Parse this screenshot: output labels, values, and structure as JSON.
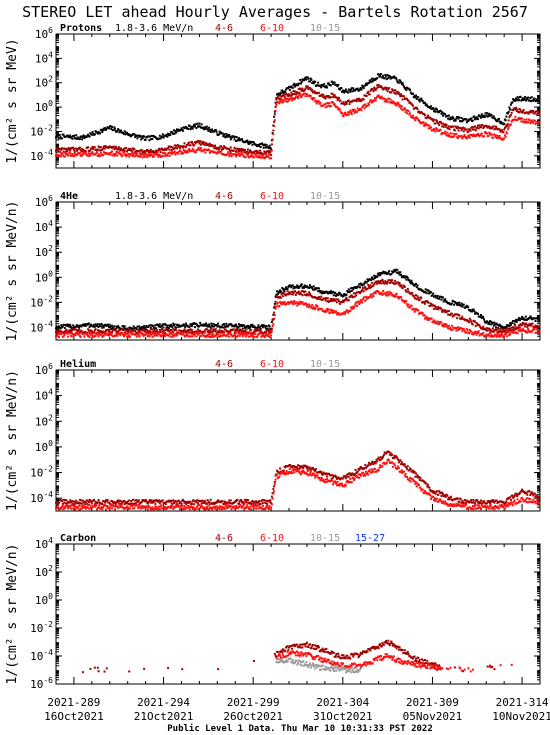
{
  "title": "STEREO LET ahead Hourly Averages - Bartels Rotation 2567",
  "footer": "Public Level 1 Data. Thu Mar 10 10:31:33 PST 2022",
  "x_ticks": [
    {
      "doy": "2021-289",
      "date": "16Oct2021",
      "day": 289
    },
    {
      "doy": "2021-294",
      "date": "21Oct2021",
      "day": 294
    },
    {
      "doy": "2021-299",
      "date": "26Oct2021",
      "day": 299
    },
    {
      "doy": "2021-304",
      "date": "31Oct2021",
      "day": 304
    },
    {
      "doy": "2021-309",
      "date": "05Nov2021",
      "day": 309
    },
    {
      "doy": "2021-314",
      "date": "10Nov2021",
      "day": 314
    }
  ],
  "colors": {
    "black": "#000000",
    "dark_red": "#a00000",
    "red": "#ff1010",
    "gray": "#9a9a9a",
    "blue": "#1030ff"
  },
  "chart_data": [
    {
      "type": "scatter",
      "panel": "Protons",
      "energy_label": "1.8-3.6 MeV/n",
      "ylabel": "1/(cm² s sr MeV)",
      "ylim": [
        1e-05,
        1000000
      ],
      "log_scale": true,
      "y_ticks": [
        -4,
        -2,
        0,
        2,
        4,
        6
      ],
      "xlim": [
        288,
        315
      ],
      "series": [
        {
          "name": "1.8-3.6 MeV/n",
          "color": "black",
          "x": [
            288,
            289.5,
            291,
            292,
            293,
            294,
            295,
            296,
            297,
            298,
            299,
            300,
            300.3,
            301,
            302,
            302.5,
            303,
            303.5,
            304,
            305,
            305.5,
            306,
            307,
            307.5,
            308,
            309,
            310,
            311,
            312,
            313,
            313.5,
            314,
            315
          ],
          "y": [
            -2.4,
            -2.5,
            -1.7,
            -2.2,
            -2.6,
            -2.4,
            -1.8,
            -1.5,
            -2.1,
            -2.6,
            -3.0,
            -3.3,
            1.0,
            1.5,
            2.4,
            1.9,
            1.7,
            2.0,
            1.3,
            1.5,
            2.1,
            2.6,
            2.3,
            1.6,
            0.9,
            -0.1,
            -0.9,
            -1.1,
            -0.6,
            -1.3,
            0.6,
            0.7,
            0.6
          ]
        },
        {
          "name": "4-6",
          "color": "dark_red",
          "x": [
            288,
            289.5,
            291,
            292,
            293,
            294,
            295,
            296,
            297,
            298,
            299,
            300,
            300.3,
            301,
            302,
            302.5,
            303,
            303.5,
            304,
            305,
            305.5,
            306,
            307,
            307.5,
            308,
            309,
            310,
            311,
            312,
            313,
            313.5,
            314,
            315
          ],
          "y": [
            -3.5,
            -3.5,
            -3.3,
            -3.5,
            -3.7,
            -3.5,
            -3.2,
            -2.9,
            -3.3,
            -3.5,
            -3.7,
            -3.8,
            0.7,
            1.0,
            1.6,
            1.1,
            0.8,
            1.0,
            0.3,
            0.6,
            1.2,
            1.7,
            1.2,
            0.6,
            -0.1,
            -1.1,
            -1.7,
            -1.9,
            -1.5,
            -2.0,
            -0.2,
            -0.3,
            -0.5
          ]
        },
        {
          "name": "6-10",
          "color": "red",
          "x": [
            288,
            289.5,
            291,
            292,
            293,
            294,
            295,
            296,
            297,
            298,
            299,
            300,
            300.3,
            301,
            302,
            302.5,
            303,
            303.5,
            304,
            305,
            305.5,
            306,
            307,
            307.5,
            308,
            309,
            310,
            311,
            312,
            313,
            313.5,
            314,
            315
          ],
          "y": [
            -3.9,
            -3.9,
            -3.8,
            -3.9,
            -4.0,
            -3.9,
            -3.7,
            -3.5,
            -3.8,
            -3.9,
            -4.0,
            -4.1,
            0.4,
            0.6,
            1.1,
            0.5,
            0.1,
            0.3,
            -0.6,
            -0.2,
            0.4,
            0.8,
            0.3,
            -0.3,
            -0.9,
            -1.8,
            -2.3,
            -2.5,
            -2.2,
            -2.6,
            -0.9,
            -1.1,
            -1.3
          ]
        }
      ]
    },
    {
      "type": "scatter",
      "panel": "4He",
      "energy_label": "1.8-3.6 MeV/n",
      "ylabel": "1/(cm² s sr MeV/n)",
      "ylim": [
        1e-05,
        1000000
      ],
      "log_scale": true,
      "y_ticks": [
        -4,
        -2,
        0,
        2,
        4,
        6
      ],
      "xlim": [
        288,
        315
      ],
      "series": [
        {
          "name": "1.8-3.6 MeV/n",
          "color": "black",
          "x": [
            288,
            290,
            292,
            294,
            296,
            298,
            300,
            300.3,
            301,
            302,
            303,
            304,
            305,
            306,
            307,
            308,
            309,
            310,
            311,
            312,
            313,
            314,
            315
          ],
          "y": [
            -4.0,
            -3.8,
            -4.1,
            -3.9,
            -3.8,
            -3.9,
            -4.0,
            -1.2,
            -0.8,
            -0.7,
            -1.2,
            -1.4,
            -0.6,
            0.2,
            0.5,
            -0.6,
            -1.4,
            -2.0,
            -2.4,
            -3.5,
            -4.1,
            -3.2,
            -3.4
          ]
        },
        {
          "name": "4-6",
          "color": "dark_red",
          "x": [
            288,
            290,
            292,
            294,
            296,
            298,
            300,
            300.3,
            301,
            302,
            303,
            304,
            305,
            306,
            307,
            308,
            309,
            310,
            311,
            312,
            313,
            314,
            315
          ],
          "y": [
            -4.3,
            -4.3,
            -4.3,
            -4.3,
            -4.3,
            -4.3,
            -4.3,
            -1.6,
            -1.2,
            -1.3,
            -1.8,
            -2.0,
            -1.1,
            -0.3,
            -0.4,
            -1.5,
            -2.3,
            -2.9,
            -3.4,
            -4.2,
            -4.3,
            -3.8,
            -3.9
          ]
        },
        {
          "name": "6-10",
          "color": "red",
          "x": [
            288,
            290,
            292,
            294,
            296,
            298,
            300,
            300.3,
            301,
            302,
            303,
            304,
            305,
            306,
            307,
            308,
            309,
            310,
            311,
            312,
            313,
            314,
            315
          ],
          "y": [
            -4.6,
            -4.6,
            -4.6,
            -4.6,
            -4.6,
            -4.6,
            -4.6,
            -2.2,
            -2.0,
            -2.2,
            -2.6,
            -3.0,
            -1.9,
            -1.2,
            -1.4,
            -2.6,
            -3.5,
            -4.0,
            -4.3,
            -4.6,
            -4.6,
            -4.2,
            -4.3
          ]
        }
      ]
    },
    {
      "type": "scatter",
      "panel": "Helium",
      "energy_label": "",
      "ylabel": "1/(cm² s sr MeV/n)",
      "ylim": [
        1e-05,
        1000000
      ],
      "log_scale": true,
      "y_ticks": [
        -4,
        -2,
        0,
        2,
        4,
        6
      ],
      "xlim": [
        288,
        315
      ],
      "series": [
        {
          "name": "4-6",
          "color": "dark_red",
          "x": [
            288,
            290,
            292,
            294,
            296,
            298,
            300,
            300.3,
            301,
            302,
            303,
            304,
            305,
            306,
            306.5,
            307,
            308,
            309,
            310,
            311,
            312,
            313,
            314,
            315
          ],
          "y": [
            -4.3,
            -4.3,
            -4.3,
            -4.3,
            -4.3,
            -4.3,
            -4.3,
            -2.0,
            -1.5,
            -1.6,
            -2.2,
            -2.5,
            -1.7,
            -1.0,
            -0.4,
            -0.9,
            -2.1,
            -3.4,
            -4.0,
            -4.3,
            -4.3,
            -4.3,
            -3.5,
            -3.8
          ]
        },
        {
          "name": "6-10",
          "color": "red",
          "x": [
            288,
            290,
            292,
            294,
            296,
            298,
            300,
            300.3,
            301,
            302,
            303,
            304,
            305,
            306,
            306.5,
            307,
            308,
            309,
            310,
            311,
            312,
            313,
            314,
            315
          ],
          "y": [
            -4.7,
            -4.7,
            -4.7,
            -4.7,
            -4.7,
            -4.7,
            -4.7,
            -2.3,
            -1.9,
            -2.0,
            -2.6,
            -3.0,
            -2.2,
            -1.7,
            -1.1,
            -1.6,
            -2.8,
            -4.0,
            -4.5,
            -4.7,
            -4.7,
            -4.7,
            -4.1,
            -4.3
          ]
        }
      ]
    },
    {
      "type": "scatter",
      "panel": "Carbon",
      "energy_label": "",
      "ylabel": "1/(cm² s sr MeV/n)",
      "ylim": [
        1e-06,
        10000
      ],
      "log_scale": true,
      "y_ticks": [
        -6,
        -4,
        -2,
        0,
        2,
        4
      ],
      "xlim": [
        288,
        315
      ],
      "series": [
        {
          "name": "4-6",
          "color": "dark_red",
          "x": [
            288.5,
            293,
            297.5,
            300.3,
            301,
            302,
            303,
            304,
            305,
            306,
            306.5,
            307,
            308,
            310,
            313
          ],
          "y": [
            -5.0,
            -5.0,
            -5.0,
            -3.9,
            -3.4,
            -3.2,
            -3.6,
            -4.1,
            -3.9,
            -3.3,
            -3.0,
            -3.3,
            -4.2,
            -5.0,
            -4.8
          ]
        },
        {
          "name": "6-10",
          "color": "red",
          "x": [
            300.3,
            301,
            302,
            303,
            304,
            305,
            306,
            306.5,
            307,
            308,
            309,
            311,
            313.5
          ],
          "y": [
            -4.1,
            -3.8,
            -3.9,
            -4.3,
            -4.7,
            -4.7,
            -4.2,
            -4.0,
            -4.3,
            -4.6,
            -4.8,
            -5.0,
            -4.7
          ]
        },
        {
          "name": "10-15",
          "color": "gray",
          "x": [
            300.3,
            301,
            302,
            303,
            304,
            305
          ],
          "y": [
            -4.4,
            -4.3,
            -4.6,
            -4.9,
            -5.0,
            -5.0
          ]
        }
      ]
    }
  ],
  "panel_labels": [
    {
      "species": "Protons",
      "energy": "1.8-3.6 MeV/n",
      "bins": [
        {
          "t": "4-6",
          "c": "dark_red"
        },
        {
          "t": "6-10",
          "c": "red"
        },
        {
          "t": "10-15",
          "c": "gray"
        }
      ]
    },
    {
      "species": "4He",
      "energy": "1.8-3.6 MeV/n",
      "bins": [
        {
          "t": "4-6",
          "c": "dark_red"
        },
        {
          "t": "6-10",
          "c": "red"
        },
        {
          "t": "10-15",
          "c": "gray"
        }
      ]
    },
    {
      "species": "Helium",
      "energy": "",
      "bins": [
        {
          "t": "4-6",
          "c": "dark_red"
        },
        {
          "t": "6-10",
          "c": "red"
        },
        {
          "t": "10-15",
          "c": "gray"
        }
      ]
    },
    {
      "species": "Carbon",
      "energy": "",
      "bins": [
        {
          "t": "4-6",
          "c": "dark_red"
        },
        {
          "t": "6-10",
          "c": "red"
        },
        {
          "t": "10-15",
          "c": "gray"
        },
        {
          "t": "15-27",
          "c": "blue"
        }
      ]
    }
  ],
  "y_axis_labels": [
    "1/(cm² s sr MeV)",
    "1/(cm² s sr MeV/n)",
    "1/(cm² s sr MeV/n)",
    "1/(cm² s sr MeV/n)"
  ]
}
